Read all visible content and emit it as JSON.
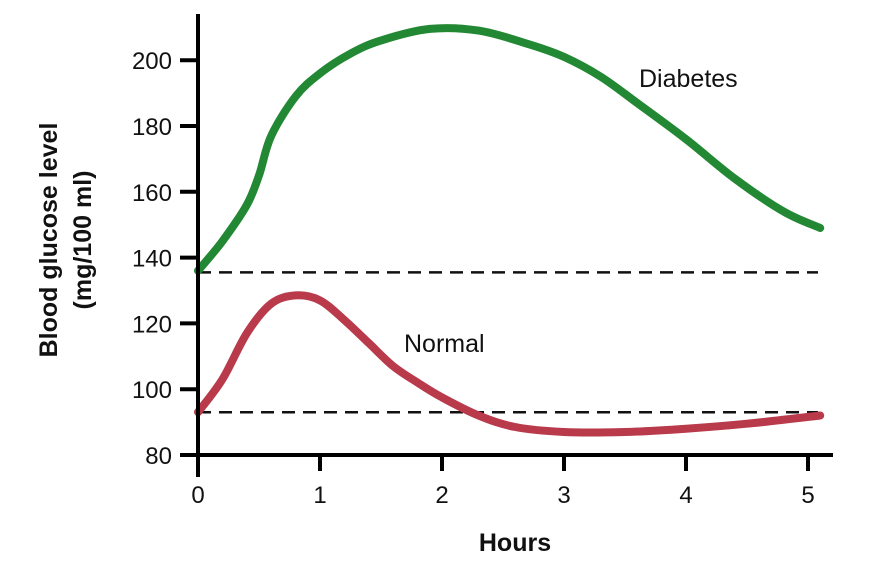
{
  "chart_data": {
    "type": "line",
    "title": "",
    "xlabel": "Hours",
    "ylabel_line1": "Blood glucose level",
    "ylabel_line2": "(mg/100 ml)",
    "xlim": [
      0,
      5.1
    ],
    "ylim": [
      80,
      210
    ],
    "x_ticks": [
      0,
      1,
      2,
      3,
      4,
      5
    ],
    "x_tick_labels": [
      "0",
      "1",
      "2",
      "3",
      "4",
      "5"
    ],
    "y_ticks": [
      80,
      100,
      120,
      140,
      160,
      180,
      200
    ],
    "y_tick_labels": [
      "80",
      "100",
      "120",
      "140",
      "160",
      "180",
      "200"
    ],
    "grid": false,
    "series": [
      {
        "name": "Diabetes",
        "color": "#228833",
        "x": [
          0,
          0.2,
          0.4,
          0.5,
          0.6,
          0.8,
          1.0,
          1.25,
          1.5,
          1.9,
          2.3,
          2.7,
          3.0,
          3.3,
          3.6,
          4.0,
          4.4,
          4.8,
          5.1
        ],
        "y": [
          136,
          145,
          156,
          165,
          177,
          189,
          196,
          202,
          206,
          209.5,
          209,
          205,
          201,
          195,
          187,
          176,
          164,
          154,
          149
        ]
      },
      {
        "name": "Normal",
        "color": "#b83a4b",
        "x": [
          0,
          0.2,
          0.4,
          0.6,
          0.8,
          1.0,
          1.2,
          1.4,
          1.6,
          1.8,
          2.0,
          2.3,
          2.6,
          3.0,
          3.5,
          4.0,
          4.5,
          5.1
        ],
        "y": [
          93,
          103,
          117,
          126,
          128.5,
          127,
          121,
          114,
          107,
          102,
          97.5,
          92,
          88.5,
          87,
          87,
          88,
          89.5,
          92
        ]
      }
    ],
    "reference_lines": [
      {
        "name": "diabetes-baseline",
        "y": 135.5
      },
      {
        "name": "normal-baseline",
        "y": 93
      }
    ],
    "annotations": [
      {
        "text": "Diabetes",
        "series": "Diabetes",
        "x": 4.0,
        "y": 200
      },
      {
        "text": "Normal",
        "series": "Normal",
        "x": 2.15,
        "y": 113
      }
    ]
  }
}
